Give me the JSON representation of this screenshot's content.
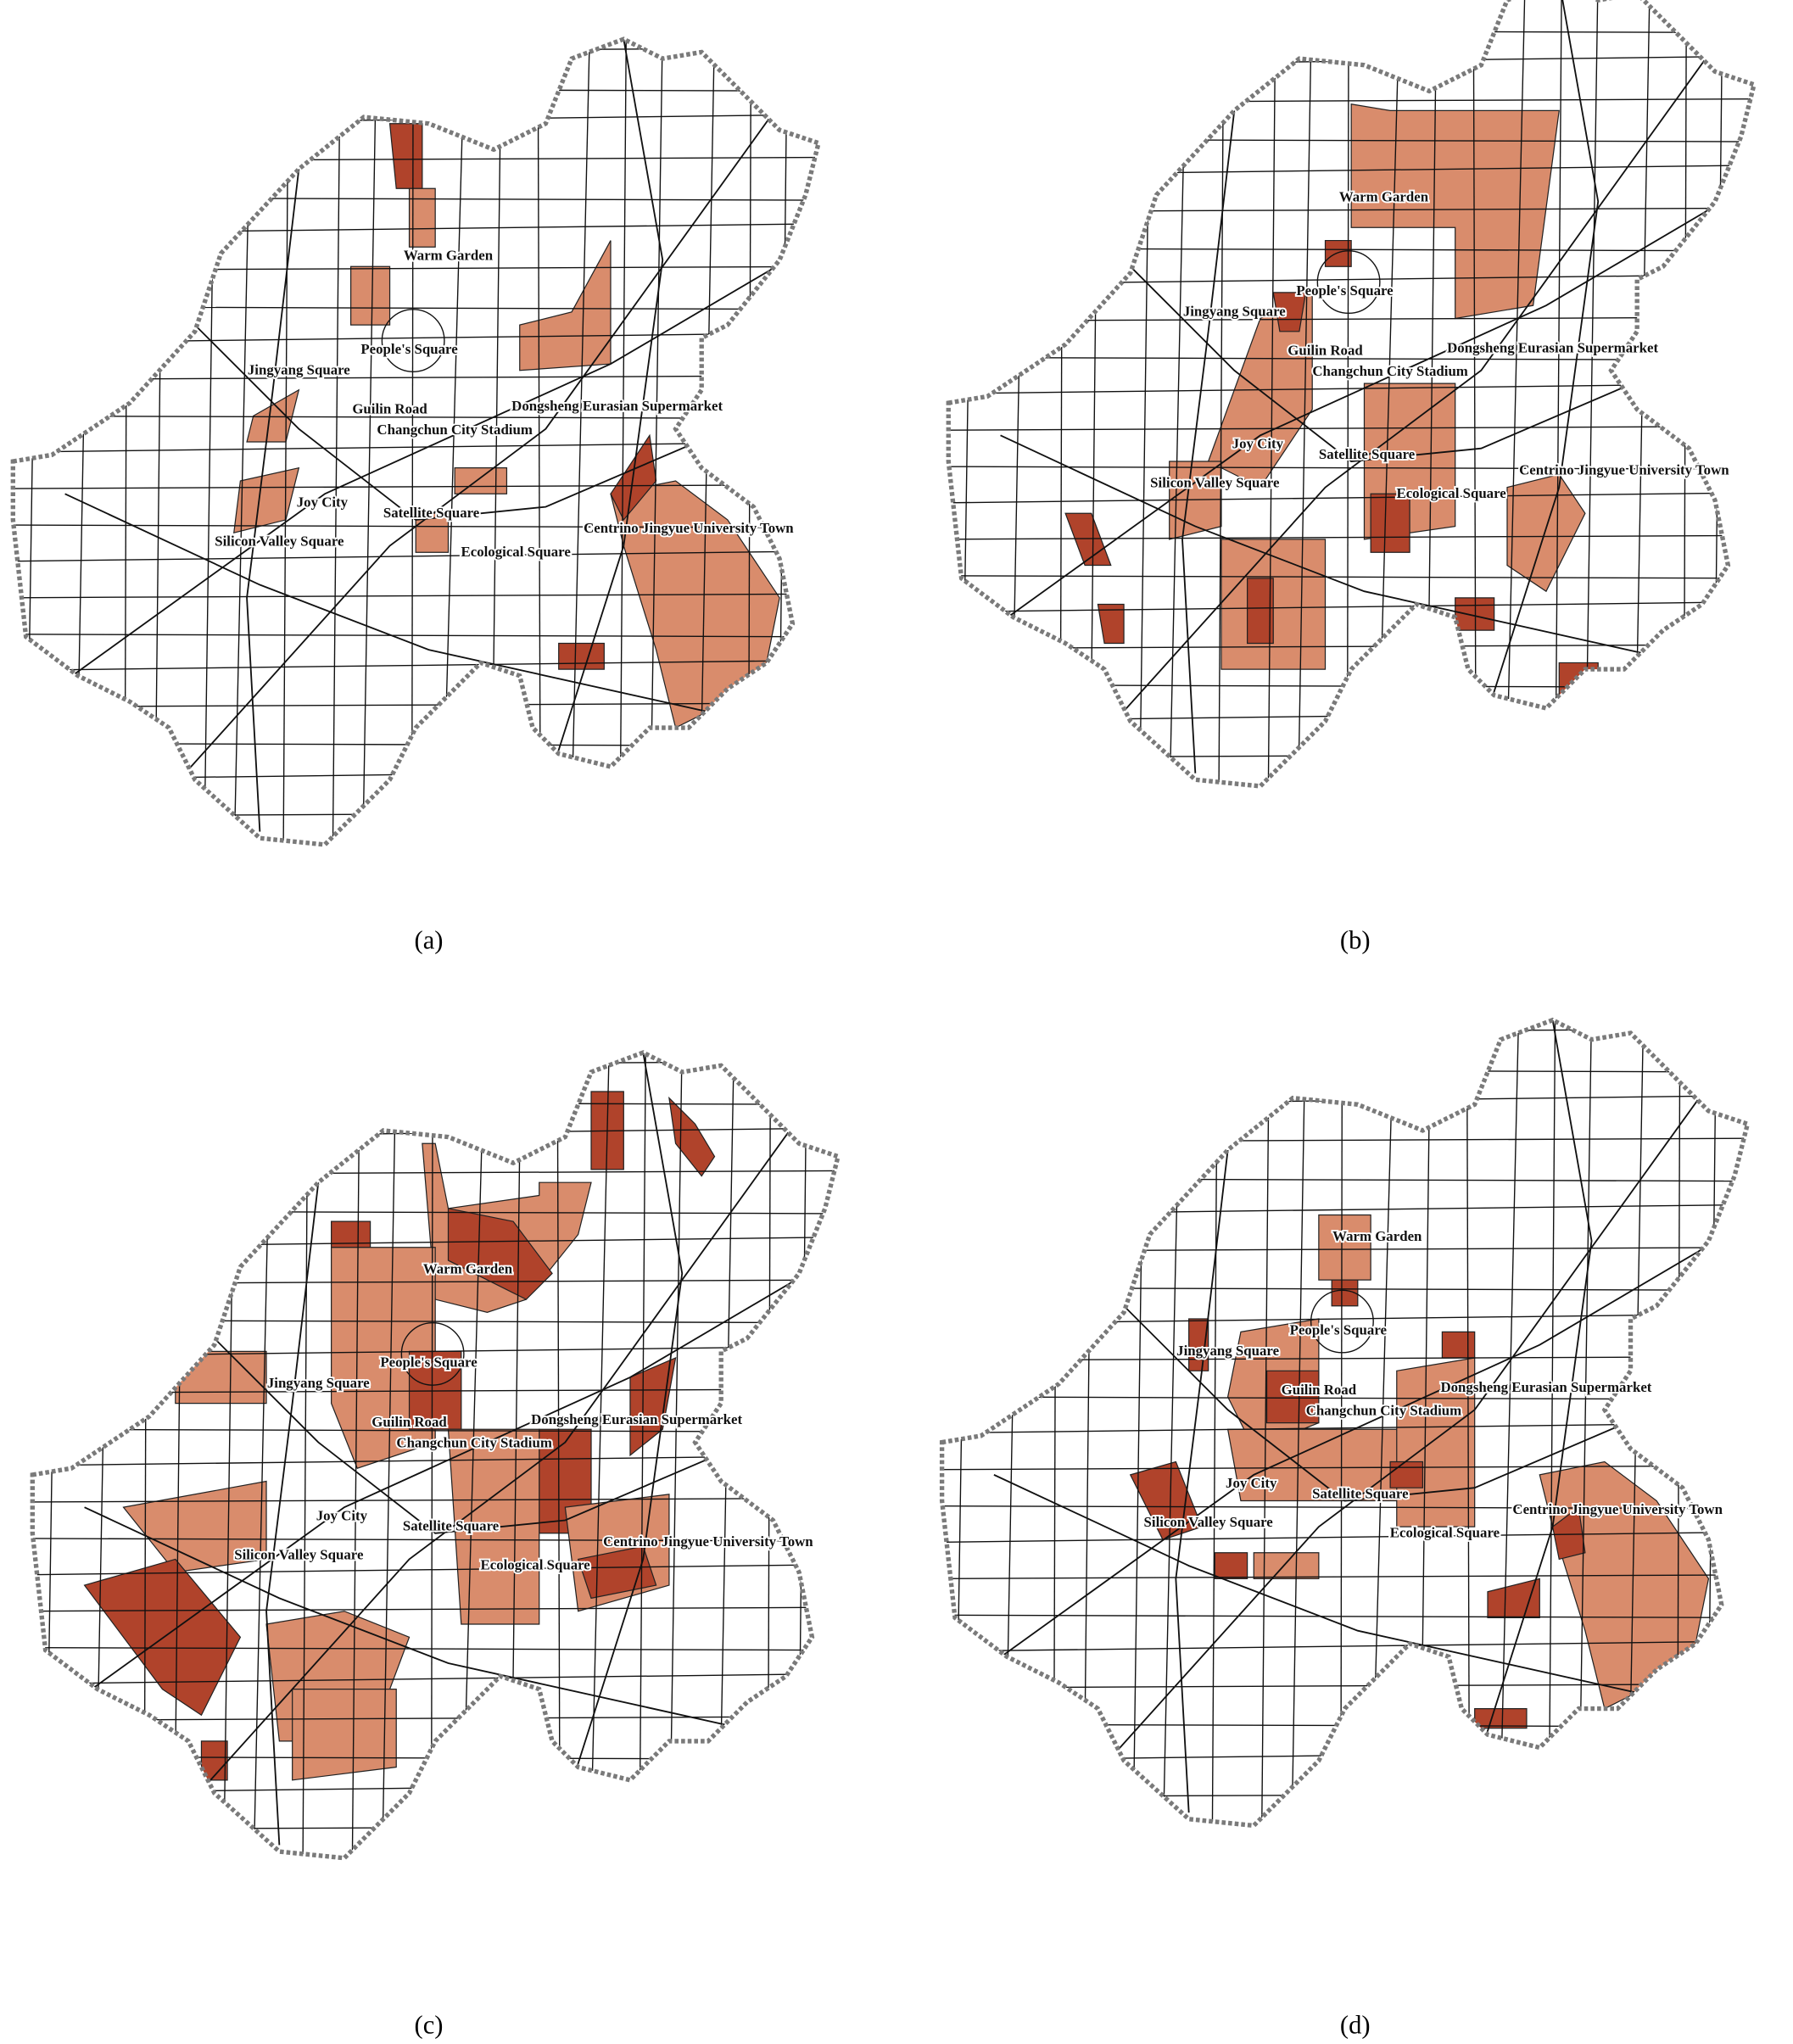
{
  "panels": [
    {
      "caption": "(a)",
      "labels": [
        "Warm Garden",
        "People's Square",
        "Jingyang Square",
        "Guilin Road",
        "Dongsheng Eurasian Supermarket",
        "Changchun City Stadium",
        "Joy City",
        "Satellite Square",
        "Centrino Jingyue University Town",
        "Silicon Valley Square",
        "Ecological Square"
      ]
    },
    {
      "caption": "(b)",
      "labels": [
        "Warm Garden",
        "People's Square",
        "Jingyang Square",
        "Guilin Road",
        "Dongsheng Eurasian Supermarket",
        "Changchun City Stadium",
        "Joy City",
        "Satellite Square",
        "Centrino Jingyue University Town",
        "Silicon Valley Square",
        "Ecological Square"
      ]
    },
    {
      "caption": "(c)",
      "labels": [
        "Warm Garden",
        "People's Square",
        "Jingyang Square",
        "Guilin Road",
        "Dongsheng Eurasian Supermarket",
        "Changchun City Stadium",
        "Joy City",
        "Satellite Square",
        "Centrino Jingyue University Town",
        "Silicon Valley Square",
        "Ecological Square"
      ]
    },
    {
      "caption": "(d)",
      "labels": [
        "Warm Garden",
        "People's Square",
        "Jingyang Square",
        "Guilin Road",
        "Dongsheng Eurasian Supermarket",
        "Changchun City Stadium",
        "Joy City",
        "Satellite Square",
        "Centrino Jingyue University Town",
        "Silicon Valley Square",
        "Ecological Square"
      ]
    }
  ]
}
